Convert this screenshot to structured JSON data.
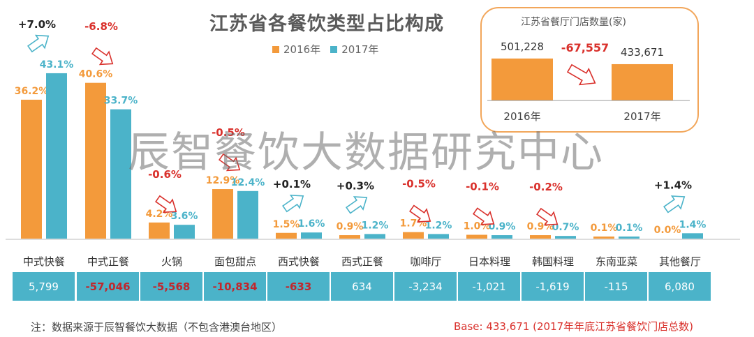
{
  "title": "江苏省各餐饮类型占比构成",
  "colors": {
    "y2016": "#f39a3b",
    "y2017": "#4bb3c9",
    "negative": "#d9302b",
    "positive": "#222222",
    "band": "#4bb3c9"
  },
  "chart_data": [
    {
      "type": "bar",
      "title": "江苏省各餐饮类型占比构成",
      "categories": [
        "中式快餐",
        "中式正餐",
        "火锅",
        "面包甜点",
        "西式快餐",
        "西式正餐",
        "咖啡厅",
        "日本料理",
        "韩国料理",
        "东南亚菜",
        "其他餐厅"
      ],
      "series": [
        {
          "name": "2016年",
          "values": [
            36.2,
            40.6,
            4.2,
            12.9,
            1.5,
            0.9,
            1.7,
            1.0,
            0.9,
            0.1,
            0.0
          ],
          "labels": [
            "36.2%",
            "40.6%",
            "4.2%",
            "12.9%",
            "1.5%",
            "0.9%",
            "1.7%",
            "1.0%",
            "0.9%",
            "0.1%",
            "0.0%"
          ]
        },
        {
          "name": "2017年",
          "values": [
            43.1,
            33.7,
            3.6,
            12.4,
            1.6,
            1.2,
            1.2,
            0.9,
            0.7,
            0.1,
            1.4
          ],
          "labels": [
            "43.1%",
            "33.7%",
            "3.6%",
            "12.4%",
            "1.6%",
            "1.2%",
            "1.2%",
            "0.9%",
            "0.7%",
            "0.1%",
            "1.4%"
          ]
        }
      ],
      "changes": [
        "+7.0%",
        "-6.8%",
        "-0.6%",
        "-0.5%",
        "+0.1%",
        "+0.3%",
        "-0.5%",
        "-0.1%",
        "-0.2%",
        "",
        "+1.4%"
      ],
      "store_change": [
        "5,799",
        "-57,046",
        "-5,568",
        "-10,834",
        "-633",
        "634",
        "-3,234",
        "-1,021",
        "-1,619",
        "-115",
        "6,080"
      ],
      "ylim": [
        0,
        50
      ],
      "legend_position": "top-center"
    },
    {
      "type": "bar",
      "title": "江苏省餐厅门店数量(家)",
      "categories": [
        "2016年",
        "2017年"
      ],
      "values": [
        501228,
        433671
      ],
      "labels": [
        "501,228",
        "433,671"
      ],
      "change": "-67,557",
      "ylim": [
        0,
        600000
      ]
    }
  ],
  "legend": {
    "y2016": "2016年",
    "y2017": "2017年"
  },
  "watermark": "辰智餐饮大数据研究中心",
  "note": "注：数据来源于辰智餐饮大数据（不包含港澳台地区）",
  "base": "Base:  433,671  (2017年年底江苏省餐饮门店总数)"
}
